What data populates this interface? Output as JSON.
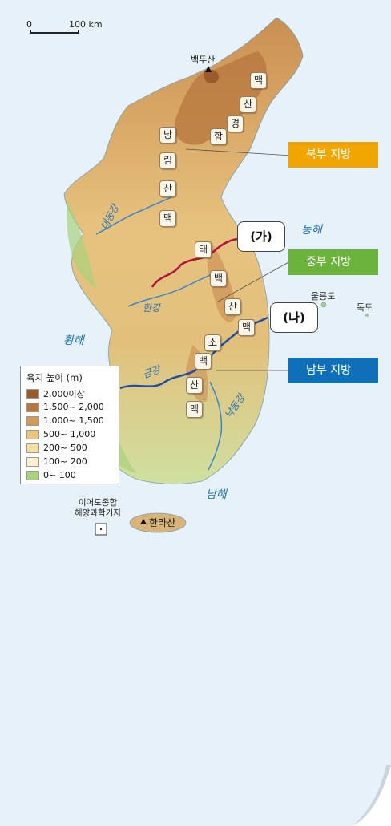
{
  "scale_bar": {
    "min": "0",
    "max": "100 km"
  },
  "regions": {
    "north": {
      "label": "북부 지방",
      "color": "#f1a500"
    },
    "central": {
      "label": "중부 지방",
      "color": "#6cb33e"
    },
    "south": {
      "label": "남부 지방",
      "color": "#0f6fb8"
    }
  },
  "callouts": {
    "a": "(가)",
    "b": "(나)"
  },
  "seas": {
    "east": "동해",
    "yellow": "황해",
    "south": "남해"
  },
  "islands": {
    "ulleung": "울릉도",
    "dok": "독도"
  },
  "peaks": {
    "baekdu": "백두산",
    "halla": "한라산"
  },
  "station": "이어도종합\n해양과학기지",
  "rivers": {
    "daedong": "대동강",
    "han": "한강",
    "geum": "금강",
    "nakdong": "낙동강"
  },
  "mountains": {
    "hamgyeong": [
      "함",
      "경",
      "산",
      "맥"
    ],
    "nangnim": [
      "낭",
      "림",
      "산",
      "맥"
    ],
    "taebaek": [
      "태",
      "백",
      "산",
      "맥"
    ],
    "sobaek": [
      "소",
      "백",
      "산",
      "맥"
    ]
  },
  "legend": {
    "title": "육지 높이 (m)",
    "items": [
      {
        "label": "2,000이상",
        "color": "#9a5a2c"
      },
      {
        "label": "1,500~ 2,000",
        "color": "#b9753b"
      },
      {
        "label": "1,000~ 1,500",
        "color": "#d39a5c"
      },
      {
        "label": "500~ 1,000",
        "color": "#ebc47d"
      },
      {
        "label": "200~ 500",
        "color": "#f6e2a2"
      },
      {
        "label": "100~ 200",
        "color": "#fbf3d0"
      },
      {
        "label": "0~ 100",
        "color": "#a9d27c"
      }
    ]
  }
}
